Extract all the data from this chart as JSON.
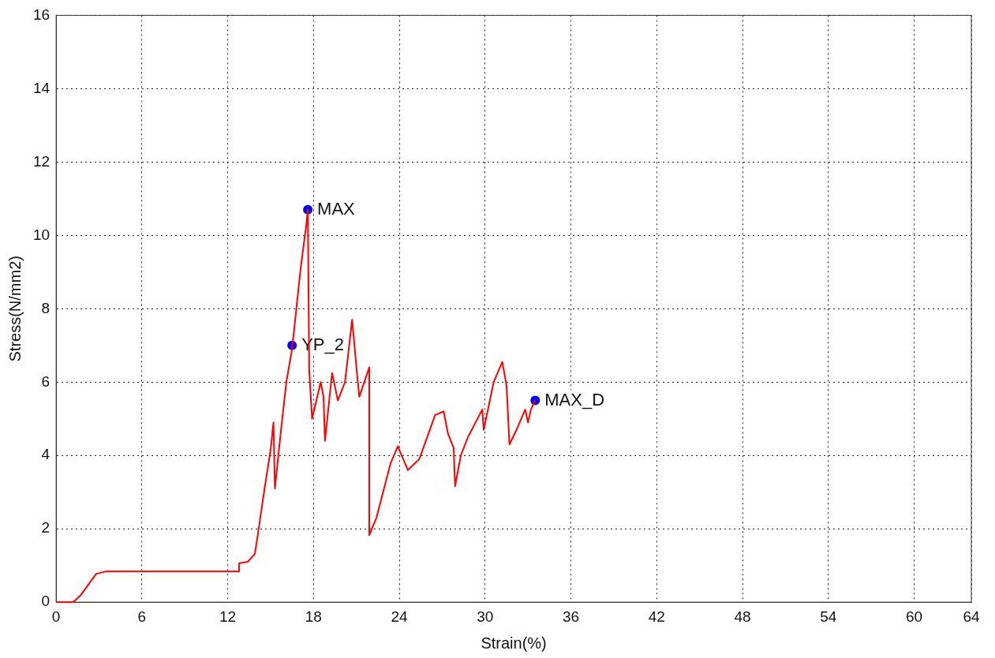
{
  "chart_data": {
    "type": "line",
    "xlabel": "Strain(%)",
    "ylabel": "Stress(N/mm2)",
    "xlim": [
      0,
      64
    ],
    "xticks": [
      0,
      6,
      12,
      18,
      24,
      30,
      36,
      42,
      48,
      54,
      60,
      64
    ],
    "ylim": [
      0,
      16
    ],
    "yticks": [
      0,
      2,
      4,
      6,
      8,
      10,
      12,
      14,
      16
    ],
    "grid": true,
    "legend": false,
    "series": [
      {
        "marker": "none",
        "color": "#ff0000",
        "x": [
          0,
          1.2,
          1.7,
          2.8,
          3.5,
          12.8,
          12.8,
          13.4,
          13.9,
          14.1,
          14.6,
          15.0,
          15.2,
          15.3,
          15.7,
          16.1,
          16.5,
          17.1,
          17.5,
          17.6,
          17.7,
          17.9,
          18.5,
          18.7,
          18.8,
          19.3,
          19.7,
          20.2,
          20.7,
          21.0,
          21.2,
          21.9,
          21.9,
          22.4,
          23.4,
          23.9,
          24.0,
          24.6,
          25.4,
          26.5,
          27.1,
          27.4,
          27.8,
          27.9,
          28.3,
          28.8,
          29.8,
          29.9,
          30.6,
          31.2,
          31.5,
          31.7,
          32.2,
          32.8,
          33.0,
          33.2,
          33.5
        ],
        "values": [
          0,
          0,
          0.18,
          0.77,
          0.84,
          0.84,
          1.06,
          1.1,
          1.32,
          1.83,
          3.16,
          4.15,
          4.9,
          3.1,
          4.6,
          6.0,
          6.9,
          9.1,
          10.3,
          10.7,
          6.3,
          5.0,
          6.0,
          5.6,
          4.4,
          6.25,
          5.5,
          6.0,
          7.7,
          6.4,
          5.6,
          6.4,
          1.83,
          2.3,
          3.8,
          4.25,
          4.15,
          3.6,
          3.9,
          5.1,
          5.2,
          4.6,
          4.2,
          3.16,
          4.0,
          4.5,
          5.25,
          4.7,
          6.0,
          6.55,
          5.9,
          4.3,
          4.7,
          5.25,
          4.9,
          5.25,
          5.5
        ]
      },
      {
        "type": "scatter",
        "marker": "circle",
        "color": "#0000ff",
        "x": [
          17.6,
          16.5,
          33.5
        ],
        "values": [
          10.7,
          7.0,
          5.5
        ]
      }
    ],
    "annotations": [
      {
        "text": "MAX",
        "x": 17.6,
        "y": 10.7
      },
      {
        "text": "YP_2",
        "x": 16.5,
        "y": 7.0
      },
      {
        "text": "MAX_D",
        "x": 33.5,
        "y": 5.5
      }
    ]
  }
}
